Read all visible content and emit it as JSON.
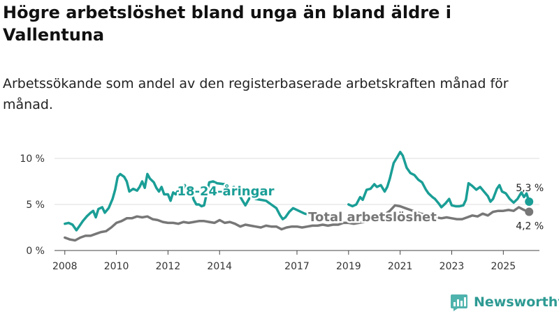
{
  "header": {
    "title": "Högre arbetslöshet bland unga än bland äldre i Vallentuna",
    "subtitle": "Arbetssökande som andel av den registerbaserade arbetskraften månad för månad."
  },
  "branding": {
    "name": "Newsworthy"
  },
  "chart_data": {
    "type": "line",
    "title": "Högre arbetslöshet bland unga än bland äldre i Vallentuna",
    "subtitle": "Arbetssökande som andel av den registerbaserade arbetskraften månad för månad.",
    "xlabel": "",
    "ylabel": "",
    "xlim": [
      2007.6,
      2026.4
    ],
    "ylim": [
      0,
      10
    ],
    "y_ticks": [
      {
        "value": 0,
        "label": "0 %"
      },
      {
        "value": 5,
        "label": "5 %"
      },
      {
        "value": 10,
        "label": "10 %"
      }
    ],
    "x_ticks": [
      {
        "value": 2008,
        "label": "2008"
      },
      {
        "value": 2010,
        "label": "2010"
      },
      {
        "value": 2012,
        "label": "2012"
      },
      {
        "value": 2014,
        "label": "2014"
      },
      {
        "value": 2017,
        "label": "2017"
      },
      {
        "value": 2019,
        "label": "2019"
      },
      {
        "value": 2021,
        "label": "2021"
      },
      {
        "value": 2023,
        "label": "2023"
      },
      {
        "value": 2025,
        "label": "2025"
      }
    ],
    "grid": true,
    "series": [
      {
        "name": "18-24-åringar",
        "color": "#1a9e96",
        "end_label": "5,3 %",
        "points": [
          [
            2008.0,
            2.9
          ],
          [
            2008.15,
            3.0
          ],
          [
            2008.3,
            2.8
          ],
          [
            2008.45,
            2.2
          ],
          [
            2008.55,
            2.6
          ],
          [
            2008.7,
            3.2
          ],
          [
            2008.85,
            3.7
          ],
          [
            2009.0,
            4.1
          ],
          [
            2009.1,
            4.3
          ],
          [
            2009.2,
            3.6
          ],
          [
            2009.3,
            4.5
          ],
          [
            2009.45,
            4.7
          ],
          [
            2009.55,
            4.1
          ],
          [
            2009.7,
            4.6
          ],
          [
            2009.85,
            5.6
          ],
          [
            2009.95,
            6.6
          ],
          [
            2010.05,
            8.0
          ],
          [
            2010.15,
            8.3
          ],
          [
            2010.3,
            8.0
          ],
          [
            2010.4,
            7.5
          ],
          [
            2010.5,
            6.4
          ],
          [
            2010.65,
            6.7
          ],
          [
            2010.8,
            6.5
          ],
          [
            2010.9,
            6.9
          ],
          [
            2011.0,
            7.5
          ],
          [
            2011.1,
            6.8
          ],
          [
            2011.2,
            8.3
          ],
          [
            2011.3,
            7.8
          ],
          [
            2011.45,
            7.4
          ],
          [
            2011.55,
            6.8
          ],
          [
            2011.65,
            6.4
          ],
          [
            2011.75,
            6.9
          ],
          [
            2011.85,
            6.1
          ],
          [
            2012.0,
            6.1
          ],
          [
            2012.1,
            5.4
          ],
          [
            2012.2,
            6.3
          ],
          [
            2012.3,
            6.1
          ],
          [
            2012.45,
            6.8
          ],
          [
            2012.55,
            6.6
          ],
          [
            2012.65,
            7.1
          ],
          [
            2012.75,
            6.5
          ],
          [
            2012.85,
            6.9
          ],
          [
            2013.0,
            5.5
          ],
          [
            2013.1,
            5.0
          ],
          [
            2013.2,
            5.0
          ],
          [
            2013.3,
            4.8
          ],
          [
            2013.4,
            4.9
          ],
          [
            2013.5,
            6.2
          ],
          [
            2013.6,
            7.4
          ],
          [
            2013.75,
            7.5
          ],
          [
            2013.9,
            7.3
          ],
          [
            2014.2,
            7.2
          ],
          [
            2014.4,
            6.6
          ],
          [
            2014.55,
            6.9
          ],
          [
            2014.7,
            6.4
          ],
          [
            2014.85,
            5.6
          ],
          [
            2015.0,
            4.9
          ],
          [
            2015.2,
            5.9
          ],
          [
            2015.4,
            5.6
          ],
          [
            2015.6,
            5.5
          ],
          [
            2015.8,
            5.4
          ],
          [
            2016.0,
            5.0
          ],
          [
            2016.2,
            4.6
          ],
          [
            2016.35,
            3.8
          ],
          [
            2016.45,
            3.4
          ],
          [
            2016.55,
            3.6
          ],
          [
            2016.7,
            4.2
          ],
          [
            2016.85,
            4.6
          ],
          [
            2017.0,
            4.4
          ],
          [
            2017.15,
            4.2
          ],
          [
            2017.3,
            4.0
          ],
          [
            2017.45,
            3.9
          ],
          [
            2019.0,
            5.0
          ],
          [
            2019.15,
            4.8
          ],
          [
            2019.3,
            5.0
          ],
          [
            2019.45,
            5.8
          ],
          [
            2019.55,
            5.5
          ],
          [
            2019.7,
            6.6
          ],
          [
            2019.85,
            6.7
          ],
          [
            2020.0,
            7.2
          ],
          [
            2020.1,
            6.9
          ],
          [
            2020.25,
            7.1
          ],
          [
            2020.4,
            6.4
          ],
          [
            2020.5,
            6.9
          ],
          [
            2020.6,
            7.8
          ],
          [
            2020.75,
            9.5
          ],
          [
            2020.9,
            10.2
          ],
          [
            2021.0,
            10.7
          ],
          [
            2021.1,
            10.3
          ],
          [
            2021.25,
            9.0
          ],
          [
            2021.4,
            8.4
          ],
          [
            2021.55,
            8.2
          ],
          [
            2021.7,
            7.7
          ],
          [
            2021.85,
            7.4
          ],
          [
            2022.0,
            6.6
          ],
          [
            2022.1,
            6.2
          ],
          [
            2022.25,
            5.8
          ],
          [
            2022.35,
            5.6
          ],
          [
            2022.5,
            5.1
          ],
          [
            2022.6,
            4.7
          ],
          [
            2022.75,
            5.1
          ],
          [
            2022.9,
            5.6
          ],
          [
            2023.0,
            4.9
          ],
          [
            2023.15,
            4.8
          ],
          [
            2023.3,
            4.8
          ],
          [
            2023.45,
            4.9
          ],
          [
            2023.55,
            5.5
          ],
          [
            2023.65,
            7.3
          ],
          [
            2023.8,
            7.0
          ],
          [
            2023.95,
            6.6
          ],
          [
            2024.1,
            6.9
          ],
          [
            2024.25,
            6.4
          ],
          [
            2024.4,
            5.9
          ],
          [
            2024.5,
            5.3
          ],
          [
            2024.6,
            5.6
          ],
          [
            2024.75,
            6.7
          ],
          [
            2024.85,
            7.1
          ],
          [
            2024.95,
            6.4
          ],
          [
            2025.1,
            6.2
          ],
          [
            2025.25,
            5.6
          ],
          [
            2025.4,
            5.2
          ],
          [
            2025.55,
            5.6
          ],
          [
            2025.7,
            6.3
          ],
          [
            2025.8,
            5.8
          ],
          [
            2025.9,
            6.2
          ],
          [
            2026.0,
            5.3
          ]
        ]
      },
      {
        "name": "Total arbetslöshet",
        "color": "#777777",
        "end_label": "4,2 %",
        "points": [
          [
            2008.0,
            1.4
          ],
          [
            2008.2,
            1.2
          ],
          [
            2008.4,
            1.1
          ],
          [
            2008.6,
            1.4
          ],
          [
            2008.8,
            1.6
          ],
          [
            2009.0,
            1.6
          ],
          [
            2009.2,
            1.8
          ],
          [
            2009.4,
            2.0
          ],
          [
            2009.6,
            2.1
          ],
          [
            2009.8,
            2.5
          ],
          [
            2010.0,
            3.0
          ],
          [
            2010.2,
            3.2
          ],
          [
            2010.4,
            3.5
          ],
          [
            2010.6,
            3.5
          ],
          [
            2010.8,
            3.7
          ],
          [
            2011.0,
            3.6
          ],
          [
            2011.2,
            3.7
          ],
          [
            2011.4,
            3.4
          ],
          [
            2011.6,
            3.3
          ],
          [
            2011.8,
            3.1
          ],
          [
            2012.0,
            3.0
          ],
          [
            2012.2,
            3.0
          ],
          [
            2012.4,
            2.9
          ],
          [
            2012.6,
            3.1
          ],
          [
            2012.8,
            3.0
          ],
          [
            2013.0,
            3.1
          ],
          [
            2013.2,
            3.2
          ],
          [
            2013.4,
            3.2
          ],
          [
            2013.6,
            3.1
          ],
          [
            2013.8,
            3.0
          ],
          [
            2014.0,
            3.3
          ],
          [
            2014.2,
            3.0
          ],
          [
            2014.4,
            3.1
          ],
          [
            2014.6,
            2.9
          ],
          [
            2014.8,
            2.6
          ],
          [
            2015.0,
            2.8
          ],
          [
            2015.2,
            2.7
          ],
          [
            2015.4,
            2.6
          ],
          [
            2015.6,
            2.5
          ],
          [
            2015.8,
            2.7
          ],
          [
            2016.0,
            2.6
          ],
          [
            2016.2,
            2.6
          ],
          [
            2016.4,
            2.3
          ],
          [
            2016.6,
            2.5
          ],
          [
            2016.8,
            2.6
          ],
          [
            2017.0,
            2.6
          ],
          [
            2017.2,
            2.5
          ],
          [
            2017.4,
            2.6
          ],
          [
            2017.6,
            2.7
          ],
          [
            2017.8,
            2.7
          ],
          [
            2018.0,
            2.8
          ],
          [
            2018.2,
            2.7
          ],
          [
            2018.4,
            2.8
          ],
          [
            2018.6,
            2.8
          ],
          [
            2018.8,
            3.0
          ],
          [
            2019.0,
            3.0
          ],
          [
            2019.2,
            2.9
          ],
          [
            2019.4,
            3.0
          ],
          [
            2019.6,
            3.1
          ],
          [
            2019.8,
            3.3
          ],
          [
            2020.0,
            3.5
          ],
          [
            2020.2,
            3.7
          ],
          [
            2020.4,
            3.9
          ],
          [
            2020.6,
            4.3
          ],
          [
            2020.8,
            4.9
          ],
          [
            2021.0,
            4.8
          ],
          [
            2021.2,
            4.6
          ],
          [
            2021.4,
            4.4
          ],
          [
            2021.6,
            4.2
          ],
          [
            2021.8,
            4.0
          ],
          [
            2022.0,
            3.9
          ],
          [
            2022.2,
            3.7
          ],
          [
            2022.4,
            3.6
          ],
          [
            2022.6,
            3.5
          ],
          [
            2022.8,
            3.6
          ],
          [
            2023.0,
            3.5
          ],
          [
            2023.2,
            3.4
          ],
          [
            2023.4,
            3.4
          ],
          [
            2023.6,
            3.6
          ],
          [
            2023.8,
            3.8
          ],
          [
            2024.0,
            3.7
          ],
          [
            2024.2,
            4.0
          ],
          [
            2024.4,
            3.8
          ],
          [
            2024.6,
            4.2
          ],
          [
            2024.8,
            4.3
          ],
          [
            2025.0,
            4.3
          ],
          [
            2025.2,
            4.4
          ],
          [
            2025.4,
            4.3
          ],
          [
            2025.6,
            4.7
          ],
          [
            2025.8,
            4.4
          ],
          [
            2026.0,
            4.2
          ]
        ]
      }
    ],
    "annotations": [
      {
        "text": "18-24-åringar",
        "series": 0
      },
      {
        "text": "Total arbetslöshet",
        "series": 1
      }
    ]
  }
}
